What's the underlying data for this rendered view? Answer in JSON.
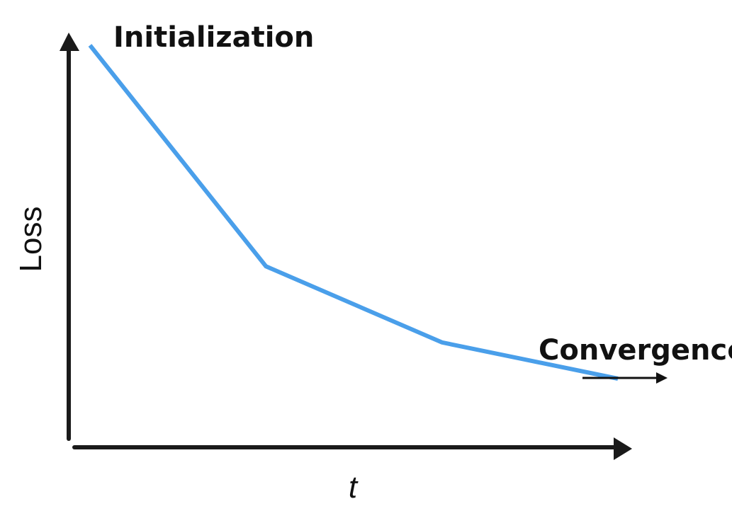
{
  "chart_data": {
    "type": "line",
    "xlabel": "t",
    "ylabel": "Loss",
    "xlim": [
      0,
      3
    ],
    "ylim": [
      0,
      1
    ],
    "grid": false,
    "line_color": "#4a9fea",
    "axis_color": "#1a1a1a",
    "x": [
      0,
      1,
      2,
      3
    ],
    "series": [
      {
        "values": [
          1.0,
          0.39,
          0.18,
          0.08
        ]
      }
    ],
    "annotations": [
      {
        "id": "init",
        "text": "Initialization",
        "points_to": "start"
      },
      {
        "id": "conv",
        "text": "Convergence",
        "points_to": "end",
        "arrow": "right"
      }
    ]
  }
}
